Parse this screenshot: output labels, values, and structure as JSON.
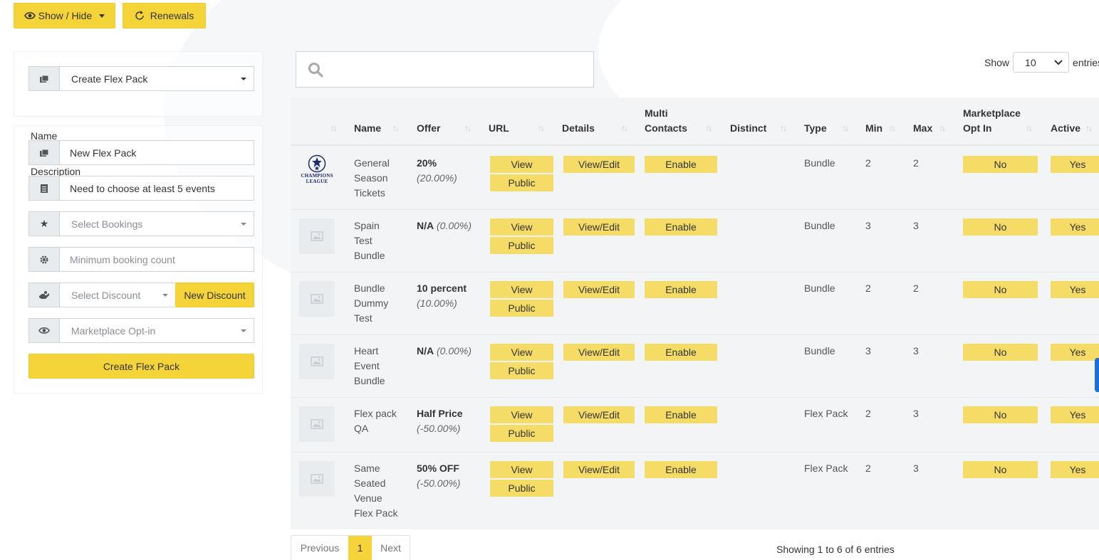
{
  "toolbar": {
    "show_hide": "Show / Hide",
    "renewals": "Renewals"
  },
  "pack_select": {
    "value": "Create Flex Pack"
  },
  "form": {
    "name_label": "Name",
    "name_value": "New Flex Pack",
    "description_label": "Description",
    "description_value": "Need to choose at least 5 events",
    "bookings_placeholder": "Select Bookings",
    "min_count_placeholder": "Minimum booking count",
    "discount_placeholder": "Select Discount",
    "new_discount": "New Discount",
    "marketplace_placeholder": "Marketplace Opt-in",
    "submit": "Create Flex Pack"
  },
  "table_controls": {
    "show_label": "Show",
    "page_size": "10",
    "entries_label": "entries"
  },
  "columns": {
    "name": "Name",
    "offer": "Offer",
    "url": "URL",
    "details": "Details",
    "multi_contacts_1": "Multi",
    "multi_contacts_2": "Contacts",
    "distinct": "Distinct",
    "type": "Type",
    "min": "Min",
    "max": "Max",
    "marketplace_1": "Marketplace",
    "marketplace_2": "Opt In",
    "active": "Active"
  },
  "buttons": {
    "view": "View",
    "public": "Public",
    "view_edit": "View/Edit",
    "enable": "Enable"
  },
  "logo": {
    "line1": "CHAMPIONS",
    "line2": "LEAGUE"
  },
  "rows": [
    {
      "name": [
        "General",
        "Season",
        "Tickets"
      ],
      "offer_main": "20%",
      "offer_pct": "(20.00%)",
      "type": "Bundle",
      "min": "2",
      "max": "2",
      "marketplace": "No",
      "active": "Yes"
    },
    {
      "name": [
        "Spain",
        "Test",
        "Bundle"
      ],
      "offer_main": "N/A",
      "offer_pct": "(0.00%)",
      "type": "Bundle",
      "min": "3",
      "max": "3",
      "marketplace": "No",
      "active": "Yes"
    },
    {
      "name": [
        "Bundle",
        "Dummy",
        "Test"
      ],
      "offer_main": "10 percent",
      "offer_pct": "(10.00%)",
      "type": "Bundle",
      "min": "2",
      "max": "2",
      "marketplace": "No",
      "active": "Yes"
    },
    {
      "name": [
        "Heart",
        "Event",
        "Bundle"
      ],
      "offer_main": "N/A",
      "offer_pct": "(0.00%)",
      "type": "Bundle",
      "min": "3",
      "max": "3",
      "marketplace": "No",
      "active": "Yes"
    },
    {
      "name": [
        "Flex pack",
        "QA"
      ],
      "offer_main": "Half Price",
      "offer_pct": "(-50.00%)",
      "type": "Flex Pack",
      "min": "2",
      "max": "3",
      "marketplace": "No",
      "active": "Yes"
    },
    {
      "name": [
        "Same",
        "Seated",
        "Venue",
        "Flex Pack"
      ],
      "offer_main": "50% OFF",
      "offer_pct": "(-50.00%)",
      "type": "Flex Pack",
      "min": "2",
      "max": "3",
      "marketplace": "No",
      "active": "Yes"
    }
  ],
  "pagination": {
    "previous": "Previous",
    "current": "1",
    "next": "Next",
    "info": "Showing 1 to 6 of 6 entries"
  }
}
